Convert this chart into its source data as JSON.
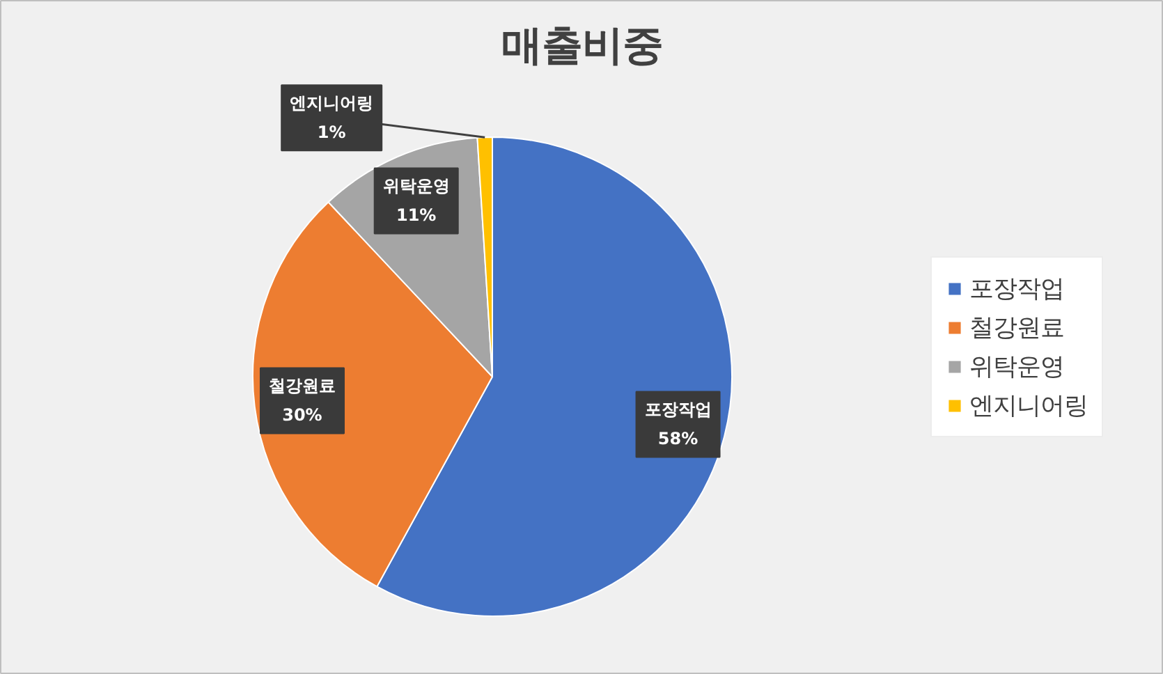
{
  "chart_data": {
    "type": "pie",
    "title": "매출비중",
    "categories": [
      "포장작업",
      "철강원료",
      "위탁운영",
      "엔지니어링"
    ],
    "values": [
      58,
      30,
      11,
      1
    ],
    "colors": [
      "#4472c4",
      "#ed7d31",
      "#a5a5a5",
      "#ffc000"
    ],
    "value_labels": [
      "58%",
      "30%",
      "11%",
      "1%"
    ],
    "legend": "right"
  }
}
